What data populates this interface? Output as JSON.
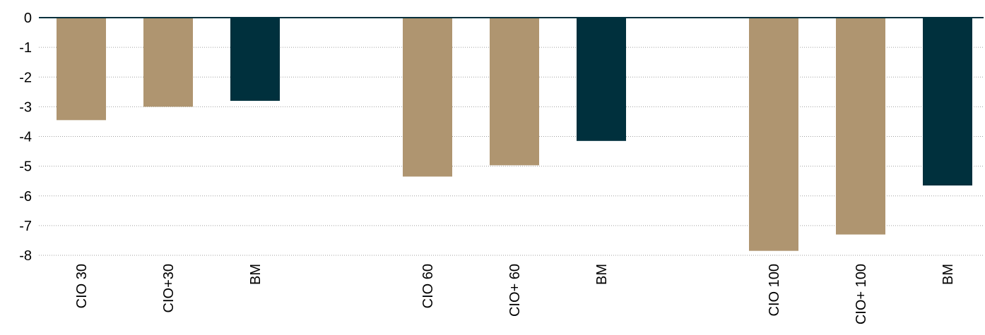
{
  "chart_data": {
    "type": "bar",
    "title": "",
    "xlabel": "",
    "ylabel": "",
    "ylim": [
      -8,
      0
    ],
    "yticks": [
      0,
      -1,
      -2,
      -3,
      -4,
      -5,
      -6,
      -7,
      -8
    ],
    "grid": true,
    "groups": [
      {
        "bars": [
          {
            "label": "CIO 30",
            "value": -3.45,
            "color": "#AF9570"
          },
          {
            "label": "CIO+30",
            "value": -3.0,
            "color": "#AF9570"
          },
          {
            "label": "BM",
            "value": -2.8,
            "color": "#00303D"
          }
        ]
      },
      {
        "bars": [
          {
            "label": "CIO 60",
            "value": -5.35,
            "color": "#AF9570"
          },
          {
            "label": "CIO+ 60",
            "value": -4.97,
            "color": "#AF9570"
          },
          {
            "label": "BM",
            "value": -4.15,
            "color": "#00303D"
          }
        ]
      },
      {
        "bars": [
          {
            "label": "CIO 100",
            "value": -7.85,
            "color": "#AF9570"
          },
          {
            "label": "CIO+ 100",
            "value": -7.3,
            "color": "#AF9570"
          },
          {
            "label": "BM",
            "value": -5.65,
            "color": "#00303D"
          }
        ]
      }
    ],
    "colors": {
      "axis": "#00303D",
      "grid": "#A0A0A0"
    }
  }
}
